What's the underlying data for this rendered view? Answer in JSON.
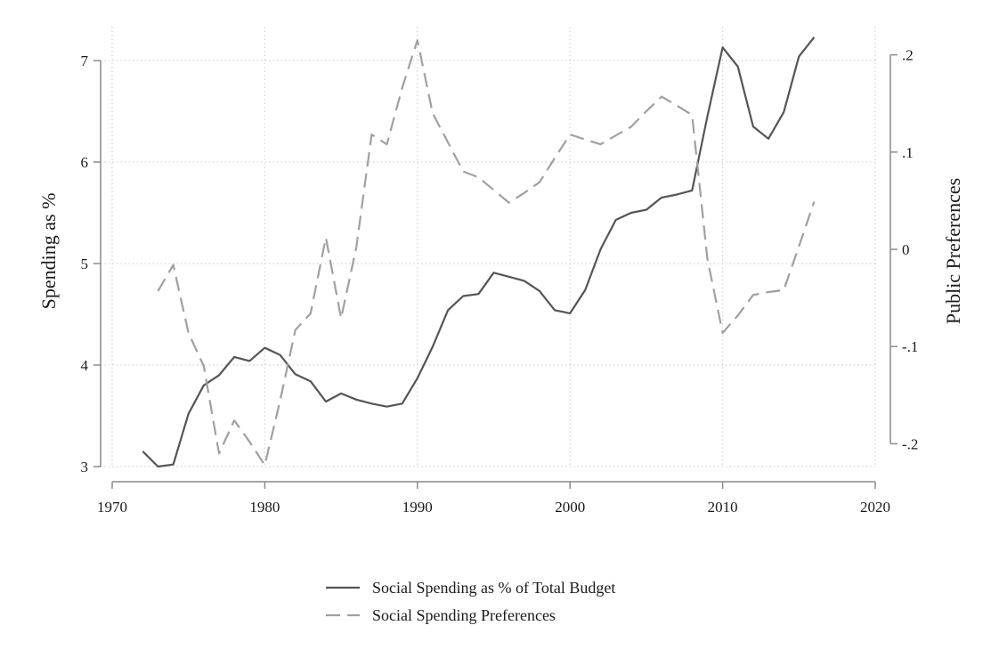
{
  "chart_data": {
    "type": "line",
    "xlabel": "",
    "ylabel_left": "Spending as %",
    "ylabel_right": "Public Preferences",
    "xlim": [
      1970,
      2020
    ],
    "ylim_left": [
      3,
      7.2
    ],
    "ylim_right": [
      -0.23,
      0.215
    ],
    "xticks": [
      1970,
      1980,
      1990,
      2000,
      2010,
      2020
    ],
    "xtick_labels": [
      "1970",
      "1980",
      "1990",
      "2000",
      "2010",
      "2020"
    ],
    "yticks_left": [
      3,
      4,
      5,
      6,
      7
    ],
    "ytick_labels_left": [
      "3",
      "4",
      "5",
      "6",
      "7"
    ],
    "yticks_right": [
      -0.2,
      -0.1,
      0,
      0.1,
      0.2
    ],
    "ytick_labels_right": [
      "-.2",
      "-.1",
      "0",
      ".1",
      ".2"
    ],
    "grid": true,
    "legend_position": "bottom-center",
    "series": [
      {
        "name": "Social Spending as % of Total Budget",
        "axis": "left",
        "style": "solid",
        "color": "#555555",
        "x": [
          1972,
          1973,
          1974,
          1975,
          1976,
          1977,
          1978,
          1979,
          1980,
          1981,
          1982,
          1983,
          1984,
          1985,
          1986,
          1987,
          1988,
          1989,
          1990,
          1991,
          1992,
          1993,
          1994,
          1995,
          1996,
          1997,
          1998,
          1999,
          2000,
          2001,
          2002,
          2003,
          2004,
          2005,
          2006,
          2007,
          2008,
          2009,
          2010,
          2011,
          2012,
          2013,
          2014,
          2015,
          2016
        ],
        "y": [
          3.15,
          3.0,
          3.02,
          3.52,
          3.8,
          3.9,
          4.08,
          4.04,
          4.17,
          4.1,
          3.91,
          3.84,
          3.64,
          3.72,
          3.66,
          3.62,
          3.59,
          3.62,
          3.87,
          4.18,
          4.54,
          4.68,
          4.7,
          4.91,
          4.87,
          4.83,
          4.73,
          4.54,
          4.51,
          4.74,
          5.14,
          5.43,
          5.5,
          5.53,
          5.65,
          5.68,
          5.72,
          6.45,
          7.13,
          6.94,
          6.35,
          6.23,
          6.49,
          7.04,
          7.23
        ]
      },
      {
        "name": "Social Spending Preferences",
        "axis": "right",
        "style": "dashed",
        "color": "#a0a0a0",
        "x": [
          1973,
          1974,
          1975,
          1976,
          1977,
          1978,
          1979,
          1980,
          1981,
          1982,
          1983,
          1984,
          1985,
          1986,
          1987,
          1988,
          1989,
          1990,
          1991,
          1992,
          1993,
          1994,
          1995,
          1996,
          1997,
          1998,
          1999,
          2000,
          2001,
          2002,
          2003,
          2004,
          2005,
          2006,
          2007,
          2008,
          2009,
          2010,
          2011,
          2012,
          2013,
          2014,
          2015,
          2016
        ],
        "y": [
          -0.043,
          -0.016,
          -0.086,
          -0.12,
          -0.21,
          -0.176,
          -0.198,
          -0.222,
          -0.156,
          -0.083,
          -0.066,
          0.012,
          -0.071,
          0.002,
          0.118,
          0.108,
          0.166,
          0.215,
          0.14,
          0.11,
          0.08,
          0.074,
          0.061,
          0.048,
          0.058,
          0.069,
          0.094,
          0.118,
          0.113,
          0.108,
          0.117,
          0.126,
          0.142,
          0.157,
          0.148,
          0.138,
          -0.01,
          -0.086,
          -0.068,
          -0.047,
          -0.044,
          -0.042,
          0.003,
          0.049
        ]
      }
    ]
  }
}
